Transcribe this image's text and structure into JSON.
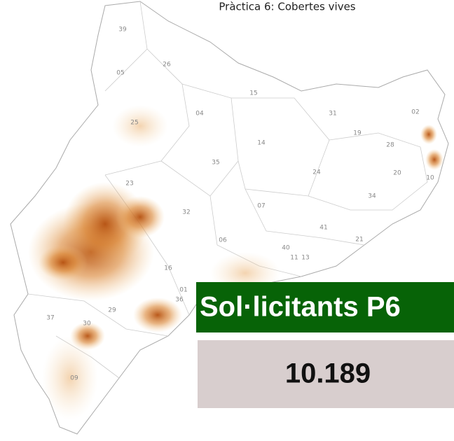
{
  "title": "Pràctica 6: Cobertes vives",
  "map": {
    "labels": [
      "39",
      "05",
      "26",
      "25",
      "04",
      "15",
      "31",
      "19",
      "02",
      "28",
      "14",
      "35",
      "24",
      "20",
      "10",
      "34",
      "23",
      "32",
      "07",
      "41",
      "06",
      "40",
      "21",
      "16",
      "11",
      "13",
      "01",
      "29",
      "36",
      "30",
      "37",
      "09"
    ]
  },
  "panel": {
    "label": "Sol·licitants P6",
    "value": "10.189"
  }
}
